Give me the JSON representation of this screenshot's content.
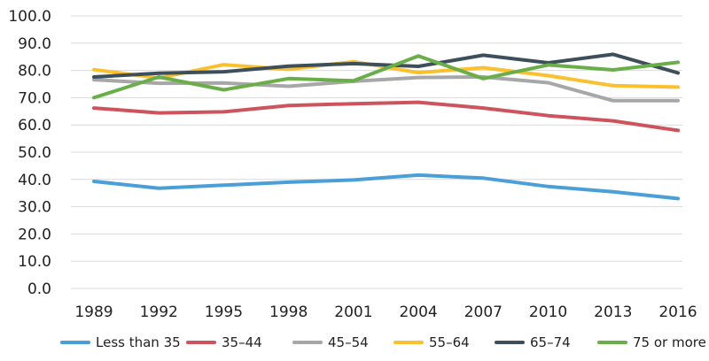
{
  "chart_data": {
    "type": "line",
    "title": "",
    "xlabel": "",
    "ylabel": "",
    "categories": [
      "1989",
      "1992",
      "1995",
      "1998",
      "2001",
      "2004",
      "2007",
      "2010",
      "2013",
      "2016"
    ],
    "ylim": [
      0,
      100
    ],
    "yticks": [
      "0.0",
      "10.0",
      "20.0",
      "30.0",
      "40.0",
      "50.0",
      "60.0",
      "70.0",
      "80.0",
      "90.0",
      "100.0"
    ],
    "grid": true,
    "legend_position": "bottom",
    "series": [
      {
        "name": "Less than 35",
        "color": "#4a9fd8",
        "values": [
          39.3,
          36.8,
          37.9,
          39.0,
          39.8,
          41.6,
          40.5,
          37.4,
          35.5,
          33.0
        ]
      },
      {
        "name": "35–44",
        "color": "#cd545c",
        "values": [
          66.2,
          64.4,
          64.8,
          67.1,
          67.8,
          68.3,
          66.2,
          63.4,
          61.5,
          58.0
        ]
      },
      {
        "name": "45–54",
        "color": "#a7a7a7",
        "values": [
          76.6,
          75.3,
          75.4,
          74.2,
          76.0,
          77.4,
          77.6,
          75.5,
          68.9,
          68.9
        ]
      },
      {
        "name": "55–64",
        "color": "#fbc02d",
        "values": [
          80.3,
          77.2,
          82.1,
          80.4,
          83.2,
          79.2,
          81.0,
          78.1,
          74.4,
          73.9
        ]
      },
      {
        "name": "65–74",
        "color": "#3d4f5a",
        "values": [
          77.6,
          79.0,
          79.5,
          81.6,
          82.5,
          81.5,
          85.6,
          82.8,
          85.9,
          79.1
        ]
      },
      {
        "name": "75 or more",
        "color": "#6aae4a",
        "values": [
          70.0,
          77.6,
          72.9,
          77.0,
          76.2,
          85.3,
          77.0,
          82.0,
          80.2,
          83.0
        ]
      }
    ]
  }
}
